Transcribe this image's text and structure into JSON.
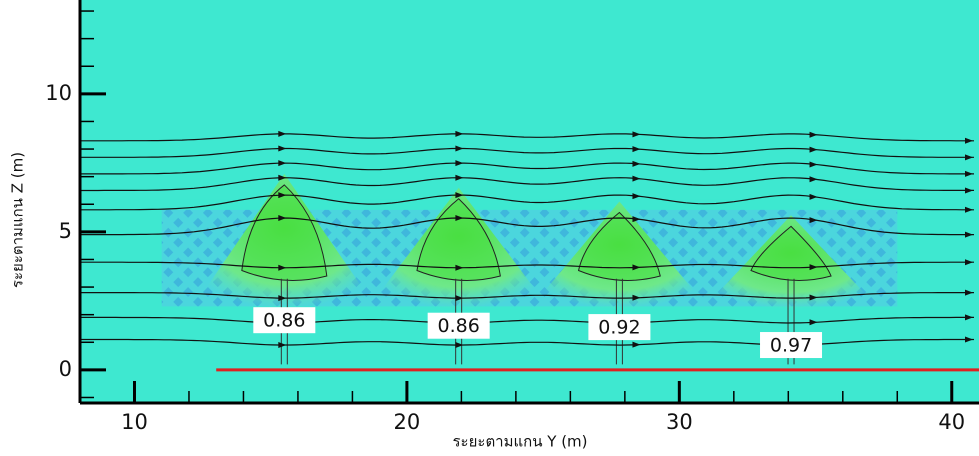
{
  "chart_data": {
    "type": "contour",
    "x_label": "ระยะตามแกน Y (m)",
    "y_label": "ระยะตามแกน Z (m)",
    "xlim": [
      8,
      41
    ],
    "ylim": [
      -1.2,
      13.4
    ],
    "xticks": [
      10,
      20,
      30,
      40
    ],
    "yticks": [
      0,
      5,
      10
    ],
    "annotations": [
      {
        "text": "0.86",
        "x": 15.5,
        "y": 1.8
      },
      {
        "text": "0.86",
        "x": 21.9,
        "y": 1.6
      },
      {
        "text": "0.92",
        "x": 27.8,
        "y": 1.55
      },
      {
        "text": "0.97",
        "x": 34.1,
        "y": 0.9
      }
    ],
    "ground_color": "#e02020"
  }
}
